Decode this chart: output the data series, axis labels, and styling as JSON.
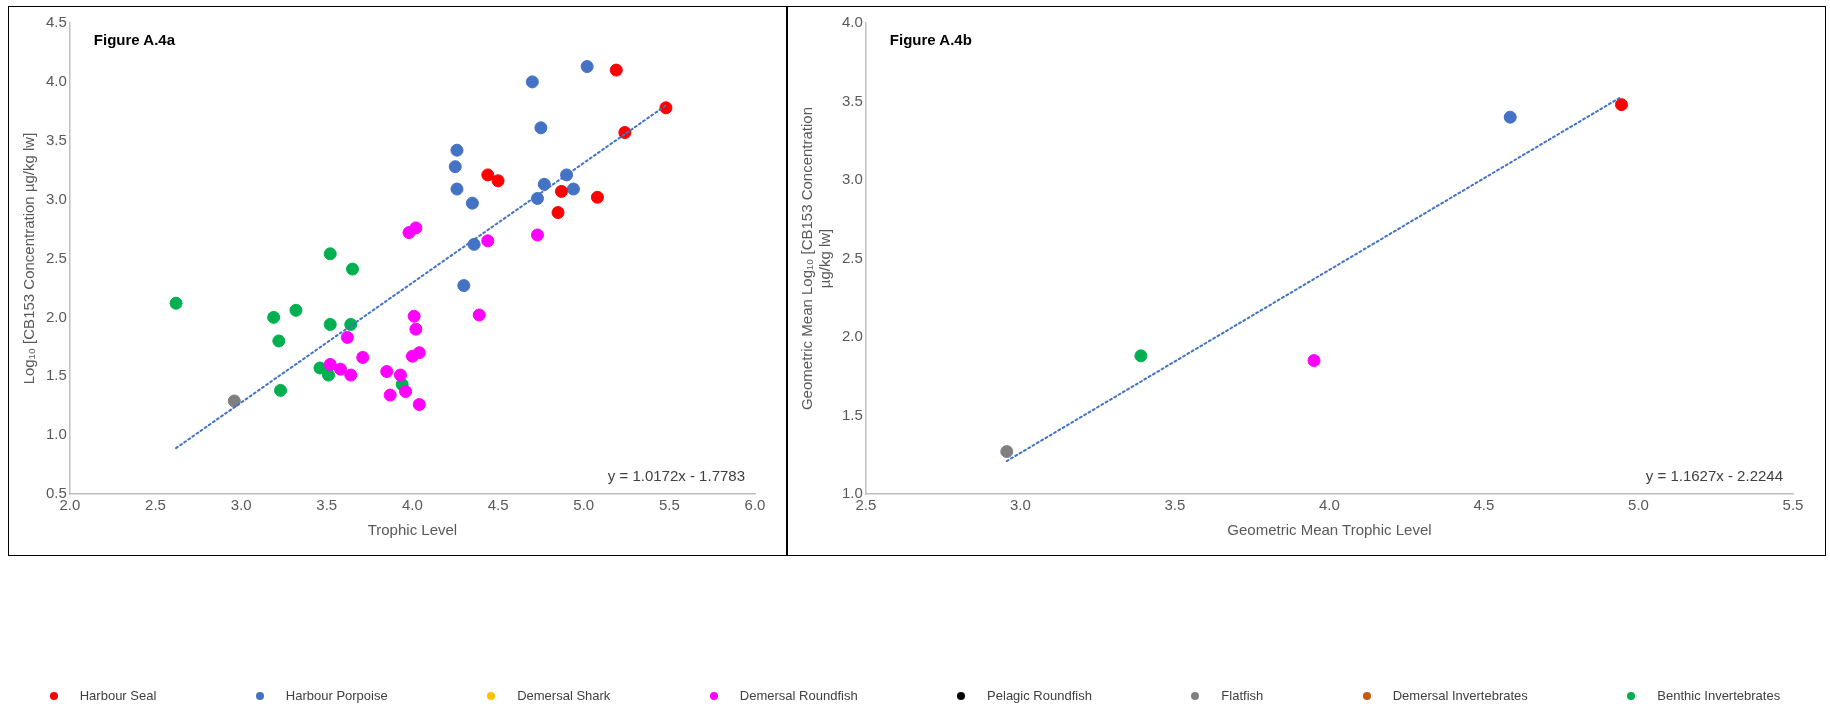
{
  "chart_data": [
    {
      "type": "scatter",
      "title": "Figure A.4a",
      "xlabel": "Trophic Level",
      "ylabel": "Log₁₀ [CB153 Concentration µg/kg lw]",
      "xlim": [
        2,
        6
      ],
      "ylim": [
        0.5,
        4.5
      ],
      "xticks": [
        {
          "value": 2,
          "label": "2.0"
        },
        {
          "value": 2.5,
          "label": "2.5"
        },
        {
          "value": 3,
          "label": "3.0"
        },
        {
          "value": 3.5,
          "label": "3.5"
        },
        {
          "value": 4,
          "label": "4.0"
        },
        {
          "value": 4.5,
          "label": "4.5"
        },
        {
          "value": 5,
          "label": "5.0"
        },
        {
          "value": 5.5,
          "label": "5.5"
        },
        {
          "value": 6,
          "label": "6.0"
        }
      ],
      "yticks": [
        {
          "value": 0.5,
          "label": "0.5"
        },
        {
          "value": 1,
          "label": "1.0"
        },
        {
          "value": 1.5,
          "label": "1.5"
        },
        {
          "value": 2,
          "label": "2.0"
        },
        {
          "value": 2.5,
          "label": "2.5"
        },
        {
          "value": 3,
          "label": "3.0"
        },
        {
          "value": 3.5,
          "label": "3.5"
        },
        {
          "value": 4,
          "label": "4.0"
        },
        {
          "value": 4.5,
          "label": "4.5"
        }
      ],
      "grid": false,
      "legend": "bottom",
      "marker": "circle",
      "annotations": [
        "y = 1.0172x - 1.7783"
      ],
      "series": [
        {
          "name": "Harbour Seal",
          "color": "#ff0000",
          "x": [
            5.19,
            5.48,
            5.24,
            4.44,
            4.5,
            4.87,
            4.85,
            5.08
          ],
          "values": [
            4.1,
            3.78,
            3.57,
            3.21,
            3.16,
            3.07,
            2.89,
            3.02
          ]
        },
        {
          "name": "Harbour Porpoise",
          "color": "#4472c4",
          "x": [
            5.02,
            4.7,
            4.75,
            4.26,
            4.25,
            4.26,
            4.35,
            4.9,
            4.77,
            4.94,
            4.73,
            4.36,
            4.3
          ],
          "values": [
            4.13,
            4.0,
            3.61,
            3.42,
            3.28,
            3.09,
            2.97,
            3.21,
            3.13,
            3.09,
            3.01,
            2.62,
            2.27
          ]
        },
        {
          "name": "Demersal Shark",
          "color": "#ffc000"
        },
        {
          "name": "Demersal Roundfish",
          "color": "#ff00ff",
          "x": [
            3.62,
            3.52,
            3.58,
            3.64,
            3.71,
            3.85,
            3.87,
            3.93,
            3.96,
            3.98,
            4.02,
            4.01,
            4.02,
            4.0,
            4.04,
            4.04,
            4.44,
            4.39,
            4.73
          ],
          "values": [
            1.83,
            1.6,
            1.56,
            1.51,
            1.66,
            1.54,
            1.34,
            1.51,
            1.37,
            2.72,
            2.76,
            2.01,
            1.9,
            1.67,
            1.7,
            1.26,
            2.65,
            2.02,
            2.7
          ]
        },
        {
          "name": "Pelagic Roundfish",
          "color": "#000000"
        },
        {
          "name": "Flatfish",
          "color": "#808080",
          "x": [
            2.96
          ],
          "values": [
            1.29
          ]
        },
        {
          "name": "Demersal Invertebrates",
          "color": "#c55a11"
        },
        {
          "name": "Benthic Invertebrates",
          "color": "#00b050",
          "x": [
            2.62,
            3.19,
            3.32,
            3.22,
            3.23,
            3.52,
            3.65,
            3.52,
            3.64,
            3.46,
            3.51,
            3.94
          ],
          "values": [
            2.12,
            2.0,
            2.06,
            1.8,
            1.38,
            2.54,
            2.41,
            1.94,
            1.94,
            1.57,
            1.51,
            1.43
          ]
        },
        {
          "type": "line",
          "marker": "none",
          "color": "#4472c4",
          "line_style": "dotted",
          "x": [
            2.62,
            5.48
          ],
          "values": [
            0.89,
            3.8
          ]
        }
      ]
    },
    {
      "type": "scatter",
      "title": "Figure A.4b",
      "xlabel": "Geometric Mean Trophic Level",
      "ylabel": "Geometric Mean Log₁₀ [CB153 Concentration µg/kg lw]",
      "xlim": [
        2.5,
        5.5
      ],
      "ylim": [
        1,
        4
      ],
      "xticks": [
        {
          "value": 2.5,
          "label": "2.5"
        },
        {
          "value": 3,
          "label": "3.0"
        },
        {
          "value": 3.5,
          "label": "3.5"
        },
        {
          "value": 4,
          "label": "4.0"
        },
        {
          "value": 4.5,
          "label": "4.5"
        },
        {
          "value": 5,
          "label": "5.0"
        },
        {
          "value": 5.5,
          "label": "5.5"
        }
      ],
      "yticks": [
        {
          "value": 1,
          "label": "1.0"
        },
        {
          "value": 1.5,
          "label": "1.5"
        },
        {
          "value": 2,
          "label": "2.0"
        },
        {
          "value": 2.5,
          "label": "2.5"
        },
        {
          "value": 3,
          "label": "3.0"
        },
        {
          "value": 3.5,
          "label": "3.5"
        },
        {
          "value": 4,
          "label": "4.0"
        }
      ],
      "grid": false,
      "marker": "circle",
      "annotations": [
        "y = 1.1627x - 2.2244"
      ],
      "series": [
        {
          "color": "#ff0000",
          "x": [
            4.945
          ],
          "values": [
            3.48
          ]
        },
        {
          "color": "#4472c4",
          "x": [
            4.585
          ],
          "values": [
            3.4
          ]
        },
        {
          "color": "#ff00ff",
          "x": [
            3.95
          ],
          "values": [
            1.85
          ]
        },
        {
          "color": "#808080",
          "x": [
            2.956
          ],
          "values": [
            1.27
          ]
        },
        {
          "color": "#00b050",
          "x": [
            3.39
          ],
          "values": [
            1.88
          ]
        },
        {
          "type": "line",
          "marker": "none",
          "color": "#4472c4",
          "line_style": "dotted",
          "x": [
            2.956,
            4.945
          ],
          "values": [
            1.21,
            3.53
          ]
        }
      ]
    }
  ]
}
